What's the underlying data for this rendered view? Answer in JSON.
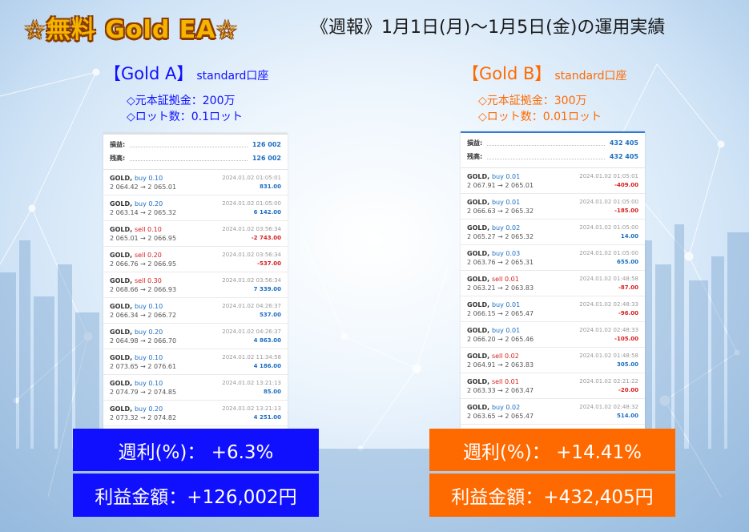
{
  "header": {
    "title": "☆無料 Gold EA☆",
    "headline": "《週報》1月1日(月)～1月5日(金)の運用実績"
  },
  "accounts": [
    {
      "name": "【Gold A】",
      "account_type": "standard口座",
      "capital": "◇元本証拠金：200万",
      "lot": "◇ロット数：0.1ロット",
      "summary": [
        {
          "label": "損益:",
          "value": "126 002"
        },
        {
          "label": "残高:",
          "value": "126 002"
        }
      ],
      "trades": [
        {
          "symbol": "GOLD,",
          "side": "buy",
          "size": "0.10",
          "open": "2 064.42",
          "close": "2 065.01",
          "time": "2024.01.02 01:05:01",
          "profit": "831.00",
          "positive": true
        },
        {
          "symbol": "GOLD,",
          "side": "buy",
          "size": "0.20",
          "open": "2 063.14",
          "close": "2 065.32",
          "time": "2024.01.02 01:05:00",
          "profit": "6 142.00",
          "positive": true
        },
        {
          "symbol": "GOLD,",
          "side": "sell",
          "size": "0.10",
          "open": "2 065.01",
          "close": "2 066.95",
          "time": "2024.01.02 03:56:34",
          "profit": "-2 743.00",
          "positive": false
        },
        {
          "symbol": "GOLD,",
          "side": "sell",
          "size": "0.20",
          "open": "2 066.76",
          "close": "2 066.95",
          "time": "2024.01.02 03:56:34",
          "profit": "-537.00",
          "positive": false
        },
        {
          "symbol": "GOLD,",
          "side": "sell",
          "size": "0.30",
          "open": "2 068.66",
          "close": "2 066.93",
          "time": "2024.01.02 03:56:34",
          "profit": "7 339.00",
          "positive": true
        },
        {
          "symbol": "GOLD,",
          "side": "buy",
          "size": "0.10",
          "open": "2 066.34",
          "close": "2 066.72",
          "time": "2024.01.02 04:26:37",
          "profit": "537.00",
          "positive": true
        },
        {
          "symbol": "GOLD,",
          "side": "buy",
          "size": "0.20",
          "open": "2 064.98",
          "close": "2 066.70",
          "time": "2024.01.02 04:26:37",
          "profit": "4 863.00",
          "positive": true
        },
        {
          "symbol": "GOLD,",
          "side": "buy",
          "size": "0.10",
          "open": "2 073.65",
          "close": "2 076.61",
          "time": "2024.01.02 11:34:58",
          "profit": "4 186.00",
          "positive": true
        },
        {
          "symbol": "GOLD,",
          "side": "buy",
          "size": "0.10",
          "open": "2 074.79",
          "close": "2 074.85",
          "time": "2024.01.02 13:21:13",
          "profit": "85.00",
          "positive": true
        },
        {
          "symbol": "GOLD,",
          "side": "buy",
          "size": "0.20",
          "open": "2 073.32",
          "close": "2 074.82",
          "time": "2024.01.02 13:21:13",
          "profit": "4 251.00",
          "positive": true
        }
      ],
      "weekly_pct": "週利(%)： +6.3%",
      "profit_amount": "利益金額：+126,002円",
      "color": "#1010ff"
    },
    {
      "name": "【Gold B】",
      "account_type": "standard口座",
      "capital": "◇元本証拠金：300万",
      "lot": "◇ロット数：0.01ロット",
      "summary": [
        {
          "label": "損益:",
          "value": "432 405"
        },
        {
          "label": "残高:",
          "value": "432 405"
        }
      ],
      "trades": [
        {
          "symbol": "GOLD,",
          "side": "buy",
          "size": "0.01",
          "open": "2 067.91",
          "close": "2 065.01",
          "time": "2024.01.02 01:05:01",
          "profit": "-409.00",
          "positive": false
        },
        {
          "symbol": "GOLD,",
          "side": "buy",
          "size": "0.01",
          "open": "2 066.63",
          "close": "2 065.32",
          "time": "2024.01.02 01:05:00",
          "profit": "-185.00",
          "positive": false
        },
        {
          "symbol": "GOLD,",
          "side": "buy",
          "size": "0.02",
          "open": "2 065.27",
          "close": "2 065.32",
          "time": "2024.01.02 01:05:00",
          "profit": "14.00",
          "positive": true
        },
        {
          "symbol": "GOLD,",
          "side": "buy",
          "size": "0.03",
          "open": "2 063.76",
          "close": "2 065.31",
          "time": "2024.01.02 01:05:00",
          "profit": "655.00",
          "positive": true
        },
        {
          "symbol": "GOLD,",
          "side": "sell",
          "size": "0.01",
          "open": "2 063.21",
          "close": "2 063.83",
          "time": "2024.01.02 01:48:58",
          "profit": "-87.00",
          "positive": false
        },
        {
          "symbol": "GOLD,",
          "side": "buy",
          "size": "0.01",
          "open": "2 066.15",
          "close": "2 065.47",
          "time": "2024.01.02 02:48:33",
          "profit": "-96.00",
          "positive": false
        },
        {
          "symbol": "GOLD,",
          "side": "buy",
          "size": "0.01",
          "open": "2 066.20",
          "close": "2 065.46",
          "time": "2024.01.02 02:48:33",
          "profit": "-105.00",
          "positive": false
        },
        {
          "symbol": "GOLD,",
          "side": "sell",
          "size": "0.02",
          "open": "2 064.91",
          "close": "2 063.83",
          "time": "2024.01.02 01:48:58",
          "profit": "305.00",
          "positive": true
        },
        {
          "symbol": "GOLD,",
          "side": "sell",
          "size": "0.01",
          "open": "2 063.33",
          "close": "2 063.47",
          "time": "2024.01.02 02:21:22",
          "profit": "-20.00",
          "positive": false
        },
        {
          "symbol": "GOLD,",
          "side": "buy",
          "size": "0.02",
          "open": "2 063.65",
          "close": "2 065.47",
          "time": "2024.01.02 02:48:32",
          "profit": "514.00",
          "positive": true
        }
      ],
      "weekly_pct": "週利(%)： +14.41%",
      "profit_amount": "利益金額：+432,405円",
      "color": "#ff6a00"
    }
  ]
}
